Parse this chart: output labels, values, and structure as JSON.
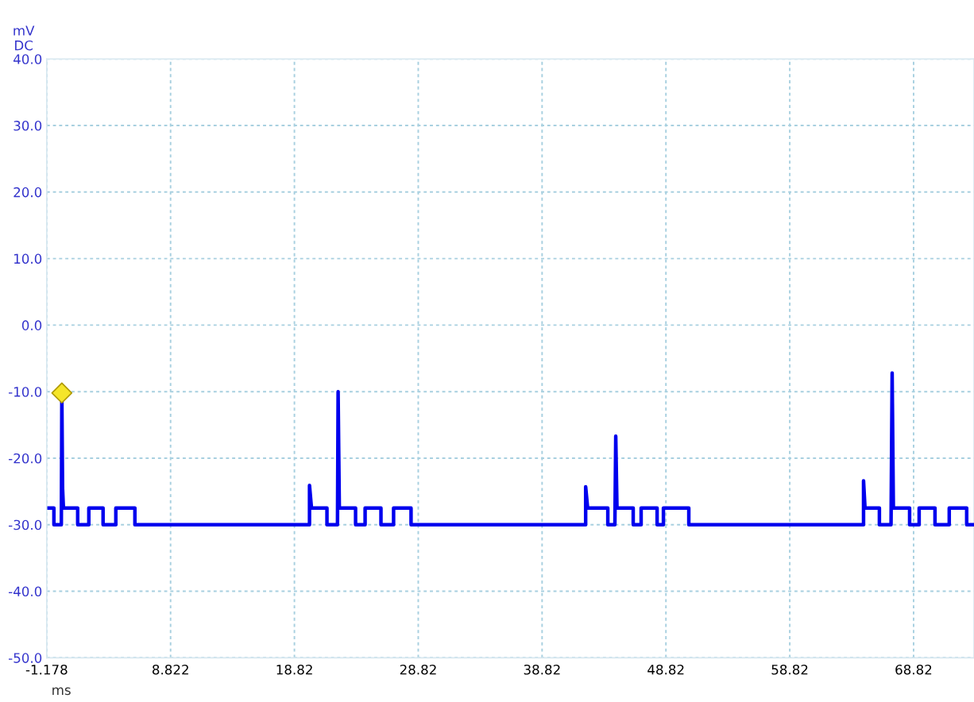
{
  "chart_data": {
    "type": "line",
    "xlabel": "ms",
    "ylabel": "mV\nDC",
    "xlim": [
      -1.178,
      73.7
    ],
    "ylim": [
      -50,
      40
    ],
    "xticks": [
      {
        "value": -1.178,
        "label": "-1.178"
      },
      {
        "value": 8.822,
        "label": "8.822"
      },
      {
        "value": 18.822,
        "label": "18.82"
      },
      {
        "value": 28.822,
        "label": "28.82"
      },
      {
        "value": 38.822,
        "label": "38.82"
      },
      {
        "value": 48.822,
        "label": "48.82"
      },
      {
        "value": 58.822,
        "label": "58.82"
      },
      {
        "value": 68.822,
        "label": "68.82"
      }
    ],
    "yticks": [
      {
        "value": -50,
        "label": "-50.0"
      },
      {
        "value": -40,
        "label": "-40.0"
      },
      {
        "value": -30,
        "label": "-30.0"
      },
      {
        "value": -20,
        "label": "-20.0"
      },
      {
        "value": -10,
        "label": "-10.0"
      },
      {
        "value": 0,
        "label": "0.0"
      },
      {
        "value": 10,
        "label": "10.0"
      },
      {
        "value": 20,
        "label": "20.0"
      },
      {
        "value": 30,
        "label": "30.0"
      },
      {
        "value": 40,
        "label": "40.0"
      }
    ],
    "grid": true,
    "line_style": "solid",
    "marker": "none",
    "series": [
      {
        "color": "#0000ee",
        "x": [
          -0.99,
          -0.6,
          -0.6,
          0.0,
          0.04,
          0.1,
          0.17,
          1.32,
          1.32,
          2.22,
          2.22,
          3.37,
          3.37,
          4.4,
          4.4,
          5.94,
          5.94,
          20.04,
          20.04,
          20.2,
          21.45,
          21.45,
          22.3,
          22.35,
          22.45,
          23.76,
          23.76,
          24.53,
          24.53,
          25.81,
          25.81,
          26.83,
          26.83,
          28.24,
          28.24,
          42.34,
          42.34,
          42.5,
          44.13,
          44.13,
          44.7,
          44.77,
          44.87,
          46.18,
          46.18,
          46.82,
          46.82,
          48.11,
          48.11,
          48.62,
          48.62,
          50.67,
          50.67,
          64.78,
          64.78,
          64.9,
          66.06,
          66.06,
          67.0,
          67.09,
          67.19,
          68.5,
          68.5,
          69.27,
          69.27,
          70.55,
          70.55,
          71.7,
          71.7,
          73.11,
          73.11,
          73.7
        ],
        "values": [
          -27.5,
          -27.5,
          -30,
          -30,
          -10.2,
          -24.5,
          -27.5,
          -27.5,
          -30,
          -30,
          -27.5,
          -27.5,
          -30,
          -30,
          -27.5,
          -27.5,
          -30,
          -30,
          -24.1,
          -27.5,
          -27.5,
          -30,
          -30,
          -10.0,
          -27.5,
          -27.5,
          -30,
          -30,
          -27.5,
          -27.5,
          -30,
          -30,
          -27.5,
          -27.5,
          -30,
          -30,
          -24.3,
          -27.5,
          -27.5,
          -30,
          -30,
          -16.7,
          -27.5,
          -27.5,
          -30,
          -30,
          -27.5,
          -27.5,
          -30,
          -30,
          -27.5,
          -27.5,
          -30,
          -30,
          -23.4,
          -27.5,
          -27.5,
          -30,
          -30,
          -7.2,
          -27.5,
          -27.5,
          -30,
          -30,
          -27.5,
          -27.5,
          -30,
          -30,
          -27.5,
          -27.5,
          -30,
          -30
        ]
      },
      {
        "type": "scatter",
        "marker": "diamond",
        "color": "#f5e52a",
        "x": [
          0.04
        ],
        "values": [
          -10.2
        ]
      }
    ]
  }
}
